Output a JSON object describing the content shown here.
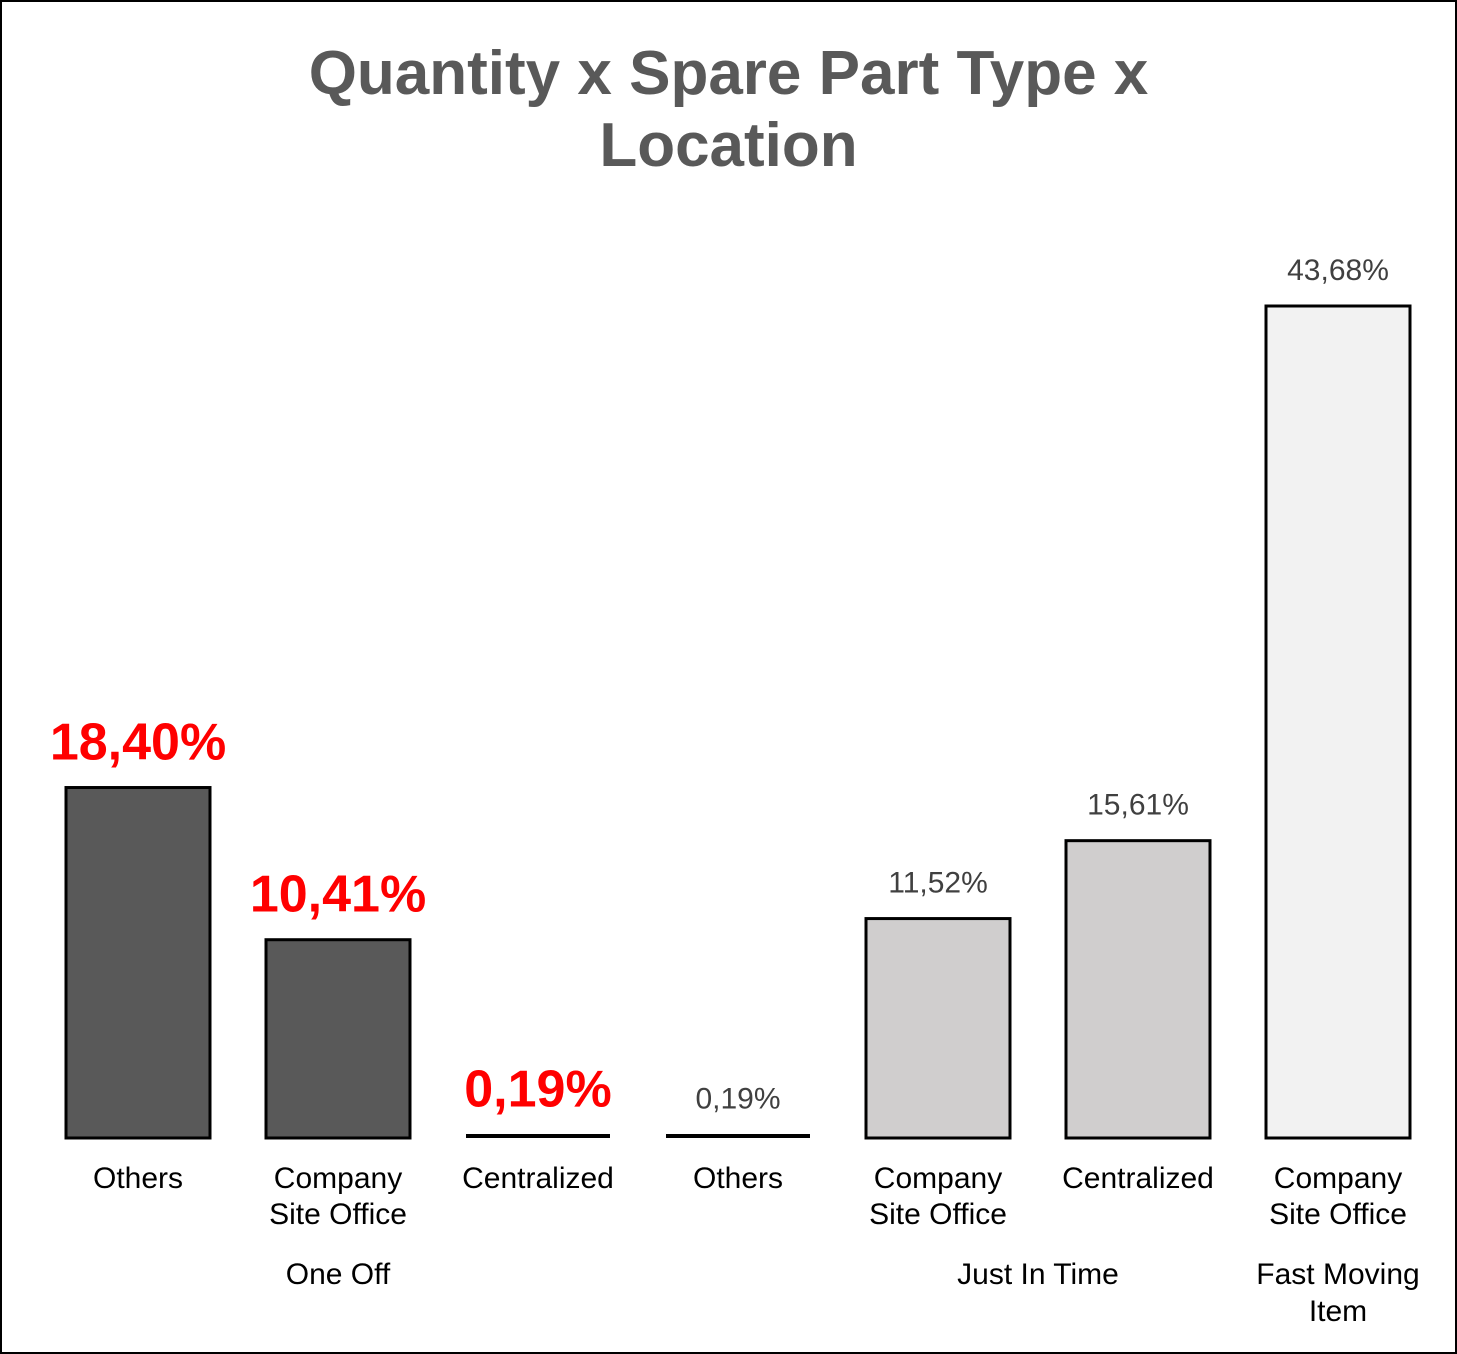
{
  "title_line1": "Quantity x Spare Part Type x",
  "title_line2": "Location",
  "chart_data": {
    "type": "bar",
    "title": "Quantity x Spare Part Type x Location",
    "groups": [
      {
        "name": "One Off",
        "categories": [
          "Others",
          "Company Site Office",
          "Centralized"
        ]
      },
      {
        "name": "",
        "categories": [
          "Others"
        ]
      },
      {
        "name": "Just In Time",
        "categories": [
          "Company Site Office",
          "Centralized"
        ]
      },
      {
        "name": "Fast Moving Item",
        "categories": [
          "Company Site Office"
        ]
      }
    ],
    "bars": [
      {
        "category": "Others",
        "value": 18.4,
        "label": "18,40%",
        "fill": "#595959",
        "highlight": true
      },
      {
        "category": "Company Site Office",
        "value": 10.41,
        "label": "10,41%",
        "fill": "#595959",
        "highlight": true
      },
      {
        "category": "Centralized",
        "value": 0.19,
        "label": "0,19%",
        "fill": "#595959",
        "highlight": true
      },
      {
        "category": "Others",
        "value": 0.19,
        "label": "0,19%",
        "fill": "#d0cece",
        "highlight": false
      },
      {
        "category": "Company Site Office",
        "value": 11.52,
        "label": "11,52%",
        "fill": "#d0cece",
        "highlight": false
      },
      {
        "category": "Centralized",
        "value": 15.61,
        "label": "15,61%",
        "fill": "#d0cece",
        "highlight": false
      },
      {
        "category": "Company Site Office",
        "value": 43.68,
        "label": "43,68%",
        "fill": "#f2f2f2",
        "highlight": false
      }
    ],
    "ylim": [
      0,
      43.68
    ],
    "grid": false,
    "xlabel": "",
    "ylabel": ""
  },
  "colors": {
    "highlight_label": "#ff0000",
    "normal_label": "#404040",
    "title": "#595959",
    "bar_stroke": "#000000"
  }
}
